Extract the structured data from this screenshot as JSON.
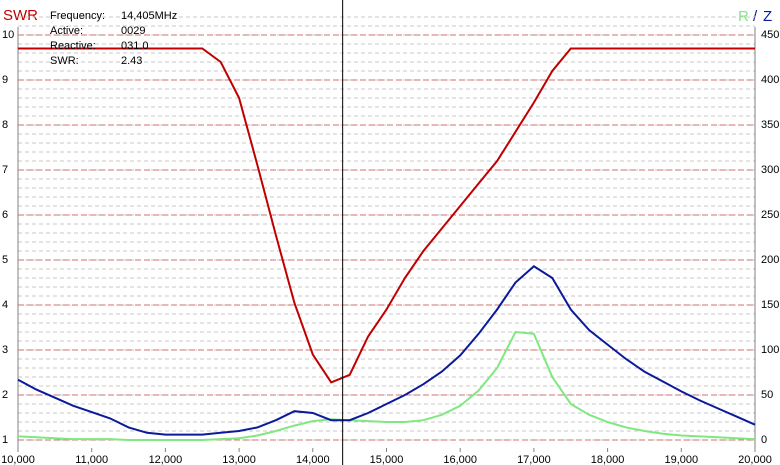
{
  "chart_data": {
    "type": "line",
    "readout": [
      {
        "label": "Frequency:",
        "value": "14,405MHz"
      },
      {
        "label": "Active:",
        "value": "0029"
      },
      {
        "label": "Reactive:",
        "value": "031.0"
      },
      {
        "label": "SWR:",
        "value": "2.43"
      }
    ],
    "legend_separator": "/",
    "cursor_x": 14405,
    "x": [
      10000,
      10250,
      10500,
      10750,
      11000,
      11250,
      11500,
      11750,
      12000,
      12250,
      12500,
      12750,
      13000,
      13250,
      13500,
      13750,
      14000,
      14250,
      14500,
      14750,
      15000,
      15250,
      15500,
      15750,
      16000,
      16250,
      16500,
      16750,
      17000,
      17250,
      17500,
      17750,
      18000,
      18250,
      18500,
      18750,
      19000,
      19250,
      19500,
      19750,
      20000
    ],
    "series": [
      {
        "name": "SWR",
        "color": "#c00000",
        "values": [
          9.7,
          9.7,
          9.7,
          9.7,
          9.7,
          9.7,
          9.7,
          9.7,
          9.7,
          9.7,
          9.7,
          9.4,
          8.6,
          7.1,
          5.55,
          4.05,
          2.9,
          2.28,
          2.45,
          3.3,
          3.9,
          4.6,
          5.2,
          5.7,
          6.2,
          6.7,
          7.2,
          7.85,
          8.5,
          9.2,
          9.7,
          9.7,
          9.7,
          9.7,
          9.7,
          9.7,
          9.7,
          9.7,
          9.7,
          9.7,
          9.7
        ]
      },
      {
        "name": "R",
        "color": "#80e880",
        "axis": "y2",
        "values": [
          4,
          3,
          2,
          1,
          1,
          1,
          0,
          0,
          0,
          0,
          0,
          1,
          2,
          5,
          10,
          16,
          21,
          23,
          22,
          21,
          20,
          20,
          22,
          28,
          38,
          55,
          80,
          120,
          118,
          70,
          40,
          28,
          20,
          14,
          10,
          7,
          5,
          4,
          3,
          2,
          1
        ]
      },
      {
        "name": "Z",
        "color": "#0a1a9a",
        "axis": "y2",
        "values": [
          67,
          56,
          47,
          38,
          31,
          24,
          14,
          8,
          6,
          6,
          6,
          8,
          10,
          14,
          22,
          32,
          30,
          22,
          22,
          30,
          40,
          50,
          62,
          76,
          94,
          118,
          145,
          175,
          193,
          180,
          145,
          122,
          106,
          90,
          76,
          65,
          54,
          44,
          35,
          26,
          17
        ]
      }
    ],
    "xlim": [
      10000,
      20000
    ],
    "xticks": [
      {
        "value": 10000,
        "label": "10,000"
      },
      {
        "value": 11000,
        "label": "11,000"
      },
      {
        "value": 12000,
        "label": "12,000"
      },
      {
        "value": 13000,
        "label": "13,000"
      },
      {
        "value": 14000,
        "label": "14,000"
      },
      {
        "value": 15000,
        "label": "15,000"
      },
      {
        "value": 16000,
        "label": "16,000"
      },
      {
        "value": 17000,
        "label": "17,000"
      },
      {
        "value": 18000,
        "label": "18,000"
      },
      {
        "value": 19000,
        "label": "19,000"
      },
      {
        "value": 20000,
        "label": "20,000"
      }
    ],
    "ylim": [
      1,
      10
    ],
    "yticks": [
      1,
      2,
      3,
      4,
      5,
      6,
      7,
      8,
      9,
      10
    ],
    "y2lim": [
      0,
      450
    ],
    "y2ticks": [
      0,
      50,
      100,
      150,
      200,
      250,
      300,
      350,
      400,
      450
    ],
    "grid": true
  }
}
